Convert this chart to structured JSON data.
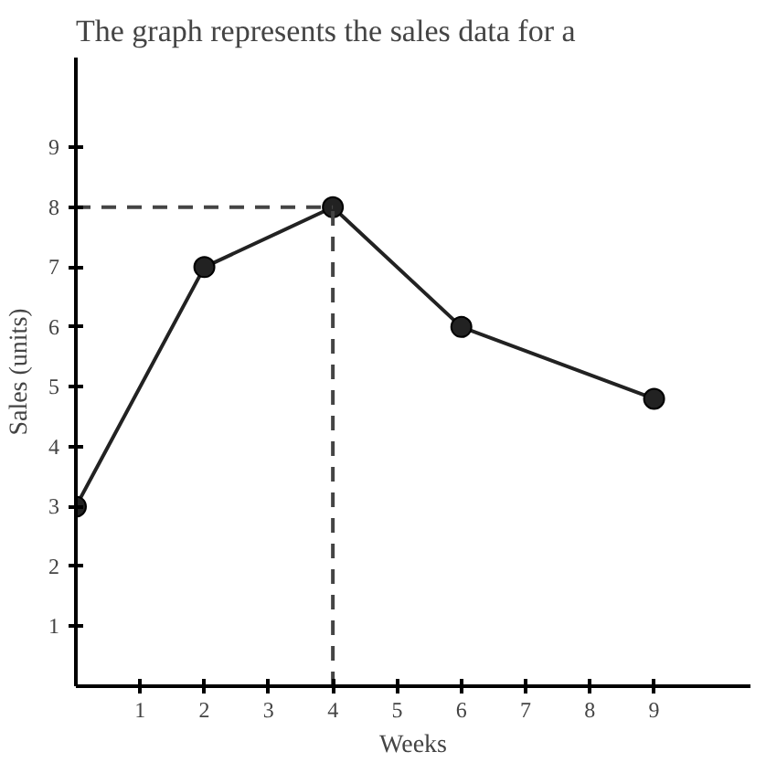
{
  "chart_data": {
    "type": "line",
    "title": "The graph represents the sales data for a",
    "xlabel": "Weeks",
    "ylabel": "Sales (units)",
    "xlim": [
      0,
      10.5
    ],
    "ylim": [
      0,
      10.5
    ],
    "xticks": [
      1,
      2,
      3,
      4,
      5,
      6,
      7,
      8,
      9
    ],
    "yticks": [
      1,
      2,
      3,
      4,
      5,
      6,
      7,
      8,
      9
    ],
    "grid": false,
    "marker": "circle",
    "line_style": "solid",
    "series": [
      {
        "color": "#222222",
        "x": [
          0,
          2,
          4,
          6,
          9
        ],
        "values": [
          3,
          7,
          8,
          6,
          4.8
        ]
      },
      {
        "color": "#444444",
        "x": [
          0,
          4
        ],
        "values": [
          8,
          8
        ],
        "line_style": "dashed",
        "marker": "none"
      },
      {
        "color": "#444444",
        "x": [
          4,
          4
        ],
        "values": [
          0,
          8
        ],
        "line_style": "dashed",
        "marker": "none"
      }
    ]
  }
}
